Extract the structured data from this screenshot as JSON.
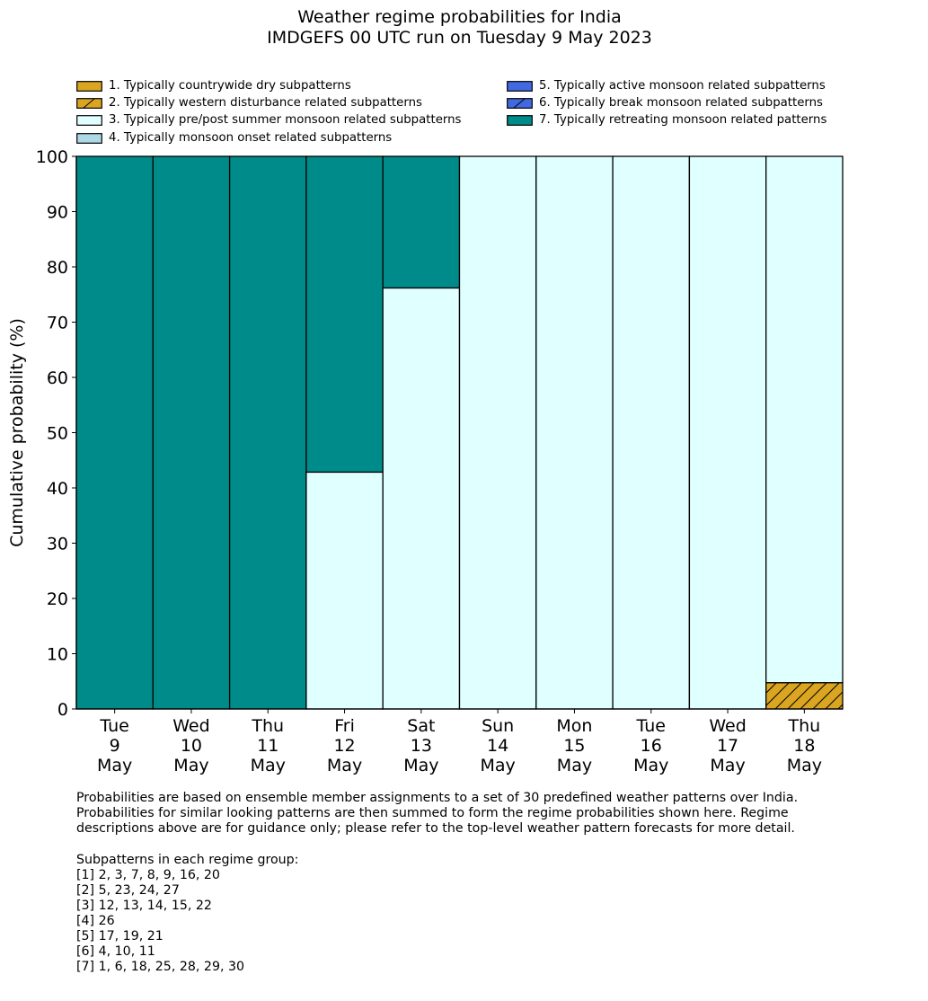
{
  "chart_data": {
    "type": "bar",
    "stacked": true,
    "title": [
      "Weather regime probabilities for India",
      "IMDGEFS 00 UTC run on Tuesday 9 May 2023"
    ],
    "ylabel": "Cumulative probability (%)",
    "xlabel": "",
    "ylim": [
      0,
      100
    ],
    "yticks": [
      0,
      10,
      20,
      30,
      40,
      50,
      60,
      70,
      80,
      90,
      100
    ],
    "categories": [
      [
        "Tue",
        "9",
        "May"
      ],
      [
        "Wed",
        "10",
        "May"
      ],
      [
        "Thu",
        "11",
        "May"
      ],
      [
        "Fri",
        "12",
        "May"
      ],
      [
        "Sat",
        "13",
        "May"
      ],
      [
        "Sun",
        "14",
        "May"
      ],
      [
        "Mon",
        "15",
        "May"
      ],
      [
        "Tue",
        "16",
        "May"
      ],
      [
        "Wed",
        "17",
        "May"
      ],
      [
        "Thu",
        "18",
        "May"
      ]
    ],
    "legend_placement": "top",
    "series": [
      {
        "name": "1. Typically countrywide dry subpatterns",
        "color": "#DAA520",
        "hatch": false,
        "values": [
          0,
          0,
          0,
          0,
          0,
          0,
          0,
          0,
          0,
          0
        ]
      },
      {
        "name": "2. Typically western disturbance related subpatterns",
        "color": "#DAA520",
        "hatch": true,
        "values": [
          0,
          0,
          0,
          0,
          0,
          0,
          0,
          0,
          0,
          4.76
        ]
      },
      {
        "name": "3. Typically pre/post summer monsoon related subpatterns",
        "color": "#E0FFFF",
        "hatch": false,
        "values": [
          0,
          0,
          0,
          42.86,
          76.19,
          100,
          100,
          100,
          100,
          95.24
        ]
      },
      {
        "name": "4. Typically monsoon onset related subpatterns",
        "color": "#ADD8E6",
        "hatch": false,
        "values": [
          0,
          0,
          0,
          0,
          0,
          0,
          0,
          0,
          0,
          0
        ]
      },
      {
        "name": "5. Typically active monsoon related subpatterns",
        "color": "#4169E1",
        "hatch": false,
        "values": [
          0,
          0,
          0,
          0,
          0,
          0,
          0,
          0,
          0,
          0
        ]
      },
      {
        "name": "6. Typically break monsoon related subpatterns",
        "color": "#4169E1",
        "hatch": true,
        "values": [
          0,
          0,
          0,
          0,
          0,
          0,
          0,
          0,
          0,
          0
        ]
      },
      {
        "name": "7. Typically retreating monsoon related patterns",
        "color": "#008B8B",
        "hatch": false,
        "values": [
          100,
          100,
          100,
          57.14,
          23.81,
          0,
          0,
          0,
          0,
          0
        ]
      }
    ]
  },
  "footnote": {
    "paragraph": "Probabilities are based on ensemble member assignments to a set of 30 predefined weather patterns over India.\nProbabilities for similar looking patterns are then summed to form the regime probabilities shown here. Regime\ndescriptions above are for guidance only; please refer to the top-level weather pattern forecasts for more detail.",
    "groups": "Subpatterns in each regime group:\n[1] 2, 3, 7, 8, 9, 16, 20\n[2] 5, 23, 24, 27\n[3] 12, 13, 14, 15, 22\n[4] 26\n[5] 17, 19, 21\n[6] 4, 10, 11\n[7] 1, 6, 18, 25, 28, 29, 30"
  }
}
